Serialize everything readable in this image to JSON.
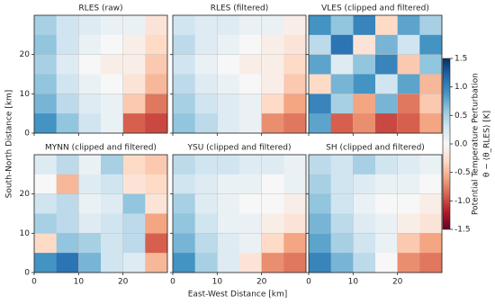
{
  "chart_data": {
    "type": "heatmap",
    "xlabel": "East-West Distance [km]",
    "ylabel": "South-North Distance [km]",
    "xlim": [
      0,
      30
    ],
    "ylim": [
      0,
      30
    ],
    "xticks": [
      0,
      10,
      20
    ],
    "yticks": [
      0,
      10,
      20
    ],
    "grid": true,
    "colorbar": {
      "label": "Potential Temperature Perturbation",
      "sublabel": "θ − ⟨θ_RLES⟩ [K]",
      "lim": [
        -1.5,
        1.5
      ],
      "ticks": [
        -1.5,
        {
          "value": -1.0,
          "label": "-1.0"
        },
        -0.5,
        {
          "value": 0.0,
          "label": "0.0"
        },
        0.5,
        {
          "value": 1.0,
          "label": "1.0"
        },
        1.5
      ],
      "colors": [
        "#67001f",
        "#b2182b",
        "#d6604d",
        "#f4a582",
        "#fddbc7",
        "#f7f7f7",
        "#d1e5f0",
        "#92c5de",
        "#4393c3",
        "#2166ac",
        "#053061"
      ]
    },
    "panels": [
      {
        "title": "RLES (raw)",
        "z": [
          [
            0.5,
            0.3,
            0.2,
            0.1,
            0.1,
            -0.2
          ],
          [
            0.6,
            0.3,
            0.1,
            0.0,
            -0.1,
            -0.3
          ],
          [
            0.5,
            0.2,
            0.0,
            -0.1,
            -0.1,
            -0.4
          ],
          [
            0.6,
            0.3,
            0.1,
            0.0,
            -0.2,
            -0.5
          ],
          [
            0.7,
            0.4,
            0.2,
            0.1,
            -0.4,
            -0.8
          ],
          [
            0.9,
            0.6,
            0.3,
            0.1,
            -0.9,
            -1.0
          ]
        ]
      },
      {
        "title": "RLES (filtered)",
        "z": [
          [
            0.3,
            0.2,
            0.2,
            0.1,
            0.1,
            -0.1
          ],
          [
            0.4,
            0.2,
            0.1,
            0.0,
            -0.1,
            -0.2
          ],
          [
            0.3,
            0.1,
            0.0,
            -0.1,
            -0.1,
            -0.3
          ],
          [
            0.4,
            0.2,
            0.1,
            0.0,
            -0.1,
            -0.4
          ],
          [
            0.5,
            0.3,
            0.2,
            0.1,
            -0.3,
            -0.6
          ],
          [
            0.6,
            0.4,
            0.2,
            0.1,
            -0.7,
            -0.8
          ]
        ]
      },
      {
        "title": "VLES (clipped and filtered)",
        "z": [
          [
            0.9,
            0.6,
            1.0,
            -0.3,
            0.8,
            0.5
          ],
          [
            0.4,
            1.1,
            -0.2,
            0.7,
            0.3,
            0.9
          ],
          [
            0.8,
            0.2,
            0.6,
            1.0,
            -0.4,
            0.6
          ],
          [
            -0.3,
            0.7,
            0.9,
            0.3,
            0.8,
            -0.5
          ],
          [
            1.0,
            0.5,
            -0.6,
            0.7,
            -0.8,
            -0.4
          ],
          [
            0.8,
            -0.9,
            -0.7,
            -1.0,
            -0.9,
            -0.6
          ]
        ]
      },
      {
        "title": "MYNN (clipped and filtered)",
        "z": [
          [
            0.2,
            0.4,
            0.1,
            0.5,
            -0.3,
            -0.4
          ],
          [
            0.0,
            -0.5,
            0.2,
            0.3,
            -0.2,
            -0.3
          ],
          [
            0.3,
            0.4,
            0.1,
            0.2,
            0.6,
            -0.2
          ],
          [
            0.5,
            0.4,
            0.2,
            0.3,
            0.4,
            -0.6
          ],
          [
            -0.3,
            0.6,
            0.5,
            0.3,
            0.4,
            -0.9
          ],
          [
            0.9,
            1.1,
            0.7,
            0.3,
            0.2,
            -0.5
          ]
        ]
      },
      {
        "title": "YSU (clipped and filtered)",
        "z": [
          [
            0.4,
            0.3,
            0.3,
            0.2,
            0.2,
            0.1
          ],
          [
            0.3,
            0.2,
            0.1,
            0.1,
            0.0,
            0.1
          ],
          [
            0.5,
            0.2,
            0.1,
            0.0,
            0.0,
            -0.1
          ],
          [
            0.6,
            0.3,
            0.1,
            0.1,
            -0.1,
            -0.2
          ],
          [
            0.7,
            0.4,
            0.2,
            0.1,
            -0.3,
            -0.6
          ],
          [
            0.9,
            0.5,
            0.2,
            -0.2,
            -0.7,
            -0.8
          ]
        ]
      },
      {
        "title": "SH (clipped and filtered)",
        "z": [
          [
            0.4,
            0.3,
            0.5,
            0.3,
            0.2,
            0.1
          ],
          [
            0.5,
            0.3,
            0.2,
            0.1,
            0.1,
            0.0
          ],
          [
            0.6,
            0.3,
            0.1,
            0.0,
            0.0,
            -0.1
          ],
          [
            0.7,
            0.4,
            0.2,
            0.1,
            -0.1,
            -0.2
          ],
          [
            0.8,
            0.5,
            0.3,
            0.1,
            -0.4,
            -0.6
          ],
          [
            1.0,
            0.7,
            0.4,
            0.0,
            -0.7,
            -0.8
          ]
        ]
      }
    ]
  }
}
